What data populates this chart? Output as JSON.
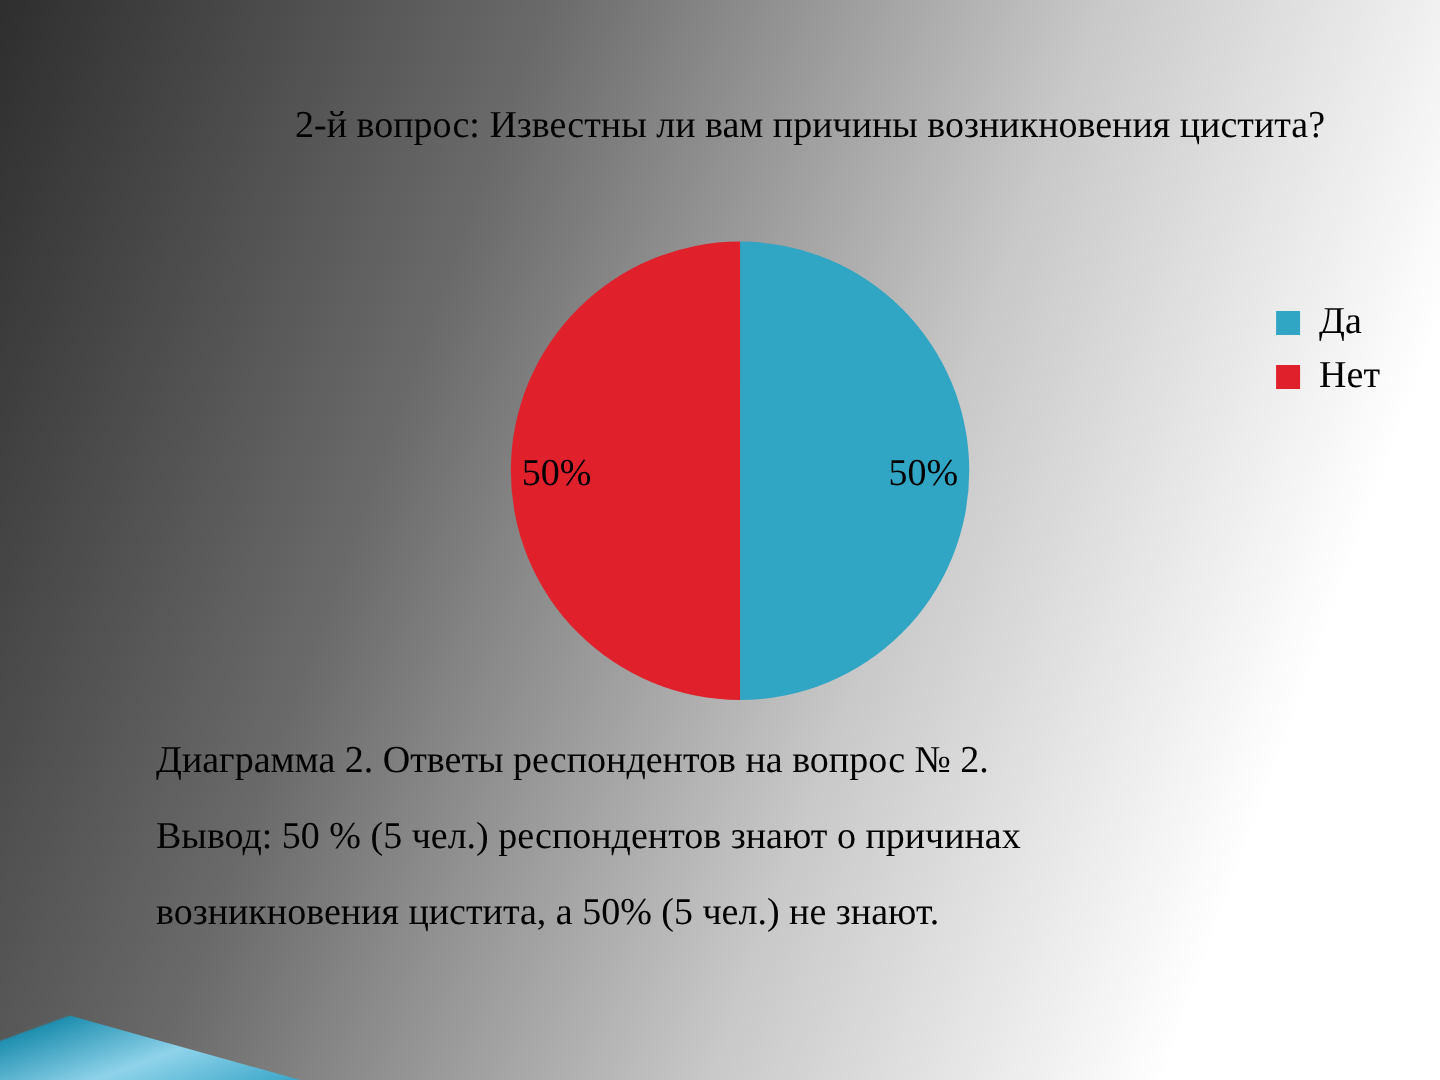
{
  "chart_data": {
    "type": "pie",
    "title": "2-й вопрос: Известны ли вам причины возникновения цистита?",
    "categories": [
      "Да",
      "Нет"
    ],
    "values": [
      50,
      50
    ],
    "colors": [
      "#31a5c4",
      "#e0202a"
    ],
    "value_labels": [
      "50%",
      "50%"
    ],
    "legend": "right",
    "annotations": [
      "Диаграмма 2. Ответы респондентов на вопрос № 2.",
      "Вывод: 50 % (5 чел.) респондентов знают о причинах возникновения цистита, а 50% (5 чел.)  не знают."
    ]
  }
}
